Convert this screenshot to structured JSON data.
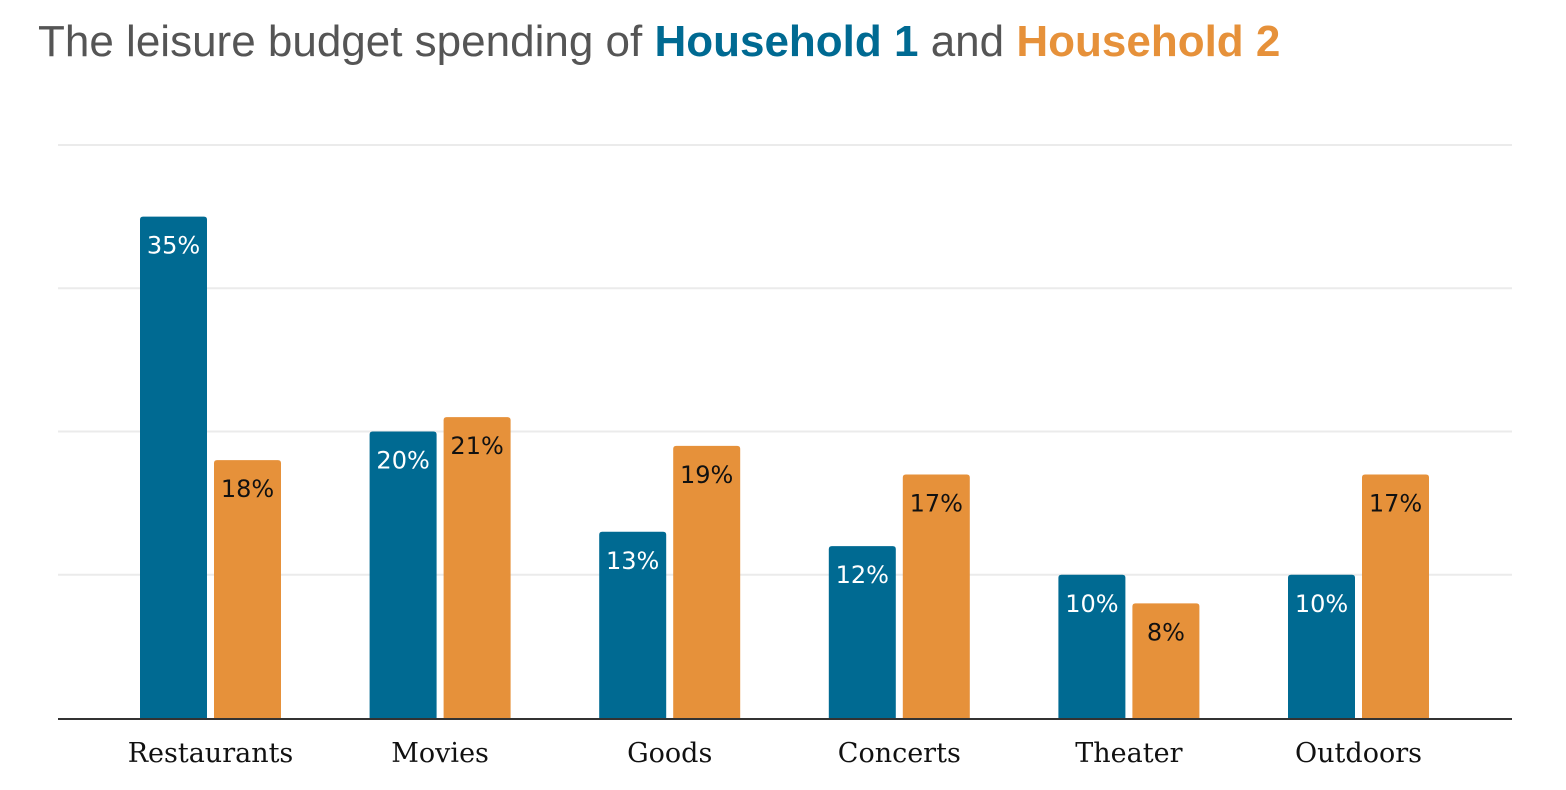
{
  "title": {
    "prefix": "The leisure budget spending of ",
    "series1": "Household 1",
    "middle": " and ",
    "series2": "Household 2"
  },
  "colors": {
    "household1": "#006a92",
    "household2": "#e6913a",
    "title_text": "#555555",
    "gridline": "#ebebeb",
    "axis": "#333333",
    "label_on_series1": "#ffffff",
    "label_on_series2": "#111111"
  },
  "chart_data": {
    "type": "bar",
    "title": "The leisure budget spending of Household 1 and Household 2",
    "xlabel": "",
    "ylabel": "",
    "categories": [
      "Restaurants",
      "Movies",
      "Goods",
      "Concerts",
      "Theater",
      "Outdoors"
    ],
    "series": [
      {
        "name": "Household 1",
        "values": [
          35,
          20,
          13,
          12,
          10,
          10
        ],
        "labels": [
          "35%",
          "20%",
          "13%",
          "12%",
          "10%",
          "10%"
        ]
      },
      {
        "name": "Household 2",
        "values": [
          18,
          21,
          19,
          17,
          8,
          17
        ],
        "labels": [
          "18%",
          "21%",
          "19%",
          "17%",
          "8%",
          "17%"
        ]
      }
    ],
    "ylim": [
      0,
      40
    ],
    "gridlines": [
      10,
      20,
      30,
      40
    ],
    "grid": true,
    "y_ticks_shown": false,
    "legend": "in title"
  }
}
